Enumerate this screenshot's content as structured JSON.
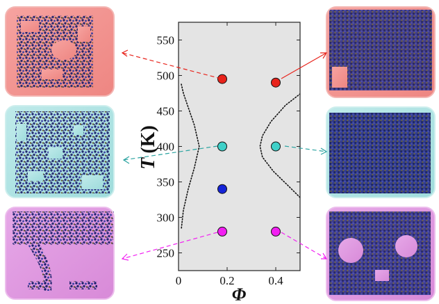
{
  "chart_data": {
    "type": "scatter",
    "xlabel": "Φ",
    "ylabel": "T (K)",
    "ylabel_main": "T",
    "ylabel_unit": "(K)",
    "xlim": [
      0,
      0.5
    ],
    "ylim": [
      225,
      575
    ],
    "x_ticks": [
      0,
      0.2,
      0.4
    ],
    "y_ticks": [
      250,
      300,
      350,
      400,
      450,
      500,
      550
    ],
    "x_tick_labels": [
      "0",
      "0.2",
      "0.4"
    ],
    "y_tick_labels": [
      "250",
      "300",
      "350",
      "400",
      "450",
      "500",
      "550"
    ],
    "grid": false,
    "points": [
      {
        "x": 0.18,
        "y": 495,
        "color": "#e8231b"
      },
      {
        "x": 0.4,
        "y": 490,
        "color": "#e8231b"
      },
      {
        "x": 0.18,
        "y": 400,
        "color": "#3fd0c8"
      },
      {
        "x": 0.4,
        "y": 400,
        "color": "#3fd0c8"
      },
      {
        "x": 0.18,
        "y": 340,
        "color": "#1524d8"
      },
      {
        "x": 0.18,
        "y": 280,
        "color": "#f21ff2"
      },
      {
        "x": 0.4,
        "y": 280,
        "color": "#f21ff2"
      }
    ],
    "left_boundary": [
      {
        "x": 0.012,
        "y": 285
      },
      {
        "x": 0.02,
        "y": 310
      },
      {
        "x": 0.04,
        "y": 340
      },
      {
        "x": 0.065,
        "y": 370
      },
      {
        "x": 0.085,
        "y": 400
      },
      {
        "x": 0.065,
        "y": 430
      },
      {
        "x": 0.04,
        "y": 455
      },
      {
        "x": 0.02,
        "y": 475
      },
      {
        "x": 0.01,
        "y": 490
      }
    ],
    "right_boundary": [
      {
        "x": 0.5,
        "y": 328
      },
      {
        "x": 0.45,
        "y": 345
      },
      {
        "x": 0.39,
        "y": 365
      },
      {
        "x": 0.345,
        "y": 385
      },
      {
        "x": 0.335,
        "y": 400
      },
      {
        "x": 0.345,
        "y": 415
      },
      {
        "x": 0.38,
        "y": 435
      },
      {
        "x": 0.44,
        "y": 458
      },
      {
        "x": 0.5,
        "y": 474
      }
    ],
    "colors": {
      "plot_background": "#e4e4e4",
      "boundary": "#111111"
    }
  }
}
